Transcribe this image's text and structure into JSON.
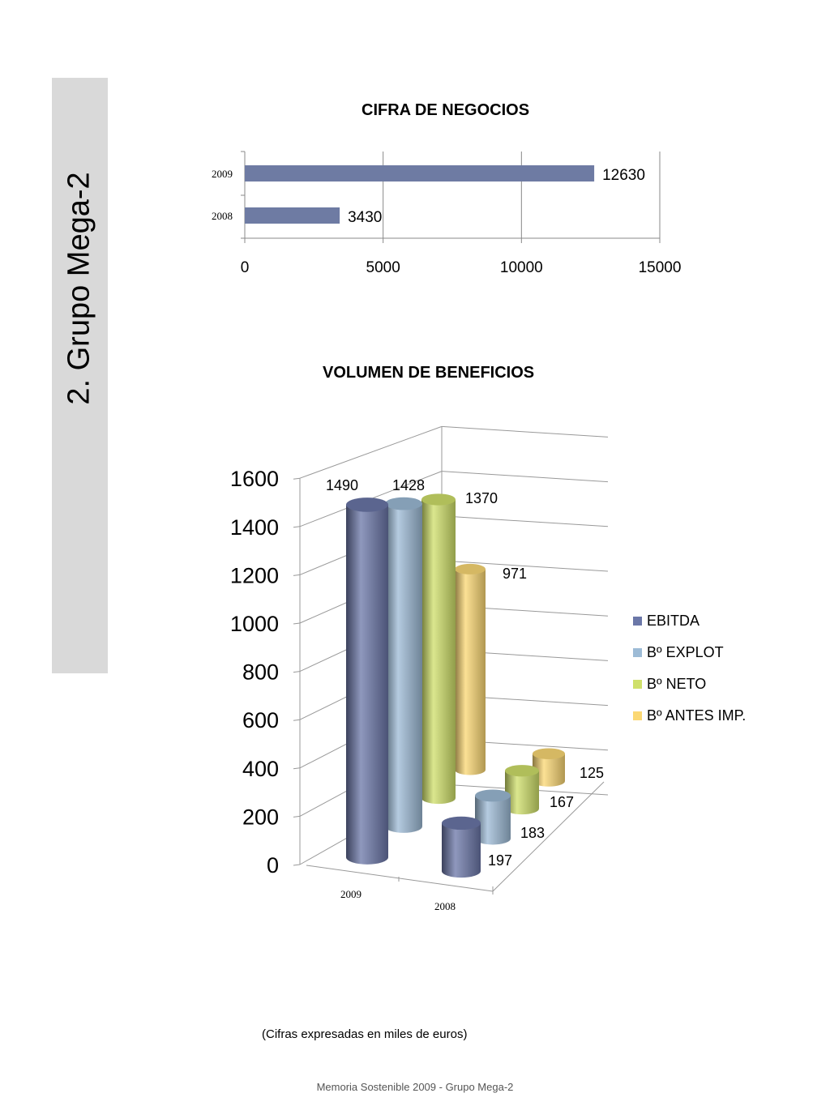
{
  "sidebar": {
    "title": "2. Grupo Mega-2"
  },
  "chart_data": [
    {
      "type": "bar",
      "orientation": "horizontal",
      "title": "CIFRA DE NEGOCIOS",
      "categories": [
        "2009",
        "2008"
      ],
      "values": [
        12630,
        3430
      ],
      "value_labels": [
        "12630",
        "3430"
      ],
      "xlim": [
        0,
        15000
      ],
      "xticks": [
        "0",
        "5000",
        "10000",
        "15000"
      ],
      "xtick_values": [
        0,
        5000,
        10000,
        15000
      ],
      "grid": true,
      "color": "#6e7ba3"
    },
    {
      "type": "bar",
      "style": "3d-cylinder",
      "title": "VOLUMEN DE BENEFICIOS",
      "categories": [
        "2009",
        "2008"
      ],
      "series": [
        {
          "name": "EBITDA",
          "values": [
            1490,
            197
          ],
          "labels": [
            "1490",
            "197"
          ],
          "color": "#6b77a8"
        },
        {
          "name": "Bº EXPLOT",
          "values": [
            1428,
            183
          ],
          "labels": [
            "1428",
            "183"
          ],
          "color": "#9dbbd6"
        },
        {
          "name": "Bº NETO",
          "values": [
            1370,
            167
          ],
          "labels": [
            "1370",
            "167"
          ],
          "color": "#cfe06a"
        },
        {
          "name": "Bº ANTES IMP.",
          "values": [
            971,
            125
          ],
          "labels": [
            "971",
            "125"
          ],
          "color": "#fbd874"
        }
      ],
      "ylim": [
        0,
        1600
      ],
      "yticks": [
        "0",
        "200",
        "400",
        "600",
        "800",
        "1000",
        "1200",
        "1400",
        "1600"
      ],
      "ytick_values": [
        0,
        200,
        400,
        600,
        800,
        1000,
        1200,
        1400,
        1600
      ],
      "legend": "right",
      "grid": true
    }
  ],
  "note": "(Cifras expresadas en miles de euros)",
  "footer": "Memoria Sostenible 2009 - Grupo Mega-2"
}
